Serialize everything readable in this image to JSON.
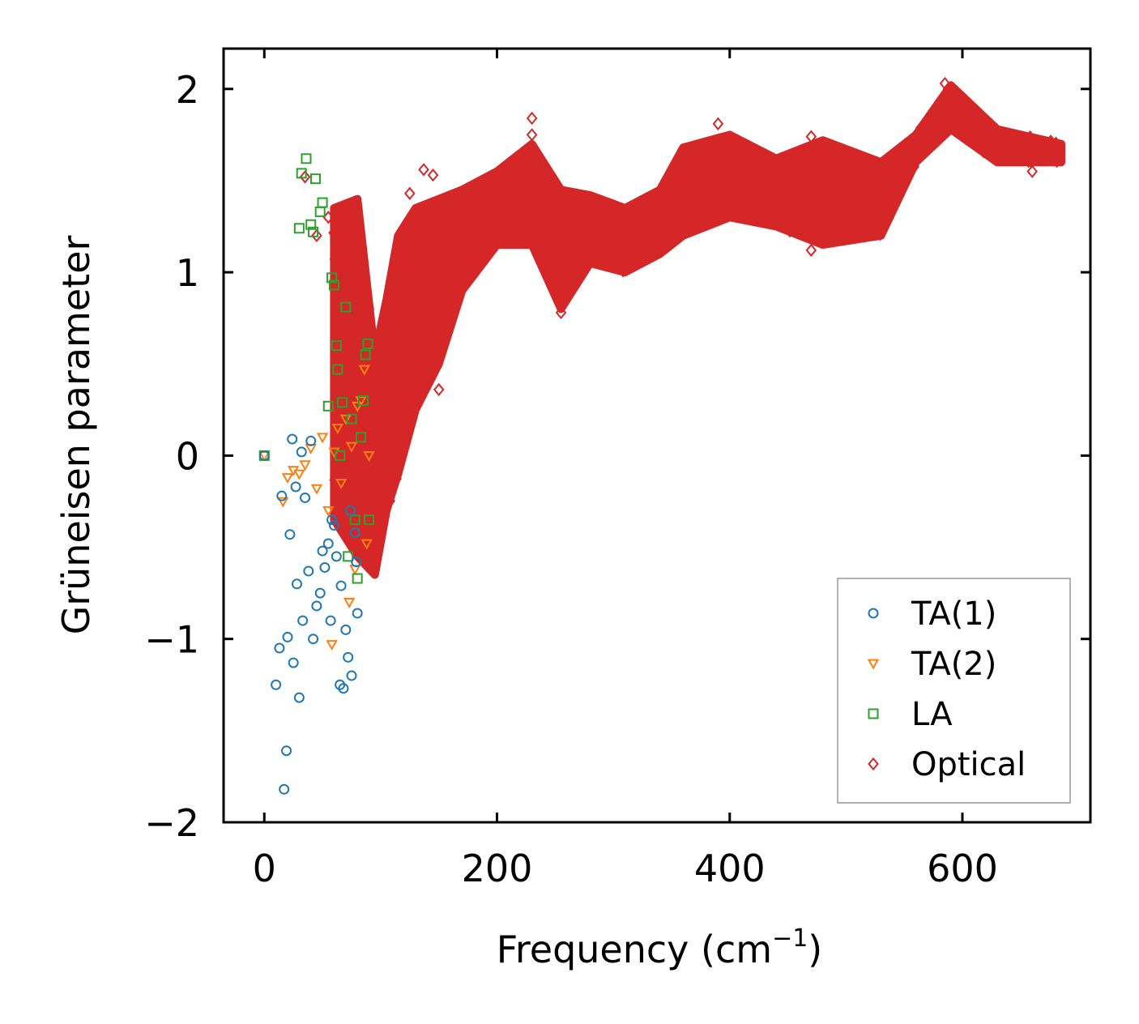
{
  "chart_data": {
    "type": "scatter",
    "title": "",
    "xlabel": "Frequency (cm",
    "xlabel_sup": "−1",
    "xlabel_close": ")",
    "ylabel": "Grüneisen parameter",
    "xlim": [
      -35,
      710
    ],
    "ylim": [
      -2.0,
      2.22
    ],
    "xticks": [
      0,
      200,
      400,
      600
    ],
    "xtick_labels": [
      "0",
      "200",
      "400",
      "600"
    ],
    "yticks": [
      -2,
      -1,
      0,
      1,
      2
    ],
    "ytick_labels": [
      "−2",
      "−1",
      "0",
      "1",
      "2"
    ],
    "legend_position": "lower-right",
    "series": [
      {
        "name": "TA(1)",
        "marker": "circle",
        "color": "#1f77b4",
        "points": [
          [
            0,
            0
          ],
          [
            15,
            -0.22
          ],
          [
            17,
            -1.82
          ],
          [
            19,
            -1.61
          ],
          [
            10,
            -1.25
          ],
          [
            20,
            -0.99
          ],
          [
            22,
            -0.43
          ],
          [
            24,
            0.09
          ],
          [
            27,
            -0.17
          ],
          [
            30,
            -1.32
          ],
          [
            32,
            0.02
          ],
          [
            35,
            -0.23
          ],
          [
            40,
            0.08
          ],
          [
            45,
            -0.82
          ],
          [
            50,
            -0.52
          ],
          [
            55,
            -0.48
          ],
          [
            58,
            -0.35
          ],
          [
            62,
            -0.55
          ],
          [
            65,
            -1.25
          ],
          [
            68,
            -1.27
          ],
          [
            70,
            -0.95
          ],
          [
            72,
            -1.1
          ],
          [
            75,
            -1.2
          ],
          [
            78,
            -0.42
          ],
          [
            80,
            -0.86
          ],
          [
            13,
            -1.05
          ],
          [
            25,
            -1.13
          ],
          [
            28,
            -0.7
          ],
          [
            33,
            -0.9
          ],
          [
            38,
            -0.63
          ],
          [
            42,
            -1.0
          ],
          [
            48,
            -0.75
          ],
          [
            52,
            -0.61
          ],
          [
            57,
            -0.9
          ],
          [
            60,
            -0.38
          ],
          [
            66,
            -0.71
          ],
          [
            74,
            -0.3
          ],
          [
            79,
            -0.58
          ]
        ]
      },
      {
        "name": "TA(2)",
        "marker": "triangle-down",
        "color": "#ff7f0e",
        "points": [
          [
            0,
            0
          ],
          [
            16,
            -0.25
          ],
          [
            20,
            -0.12
          ],
          [
            25,
            -0.08
          ],
          [
            30,
            -0.1
          ],
          [
            35,
            -0.05
          ],
          [
            40,
            0.04
          ],
          [
            45,
            -0.18
          ],
          [
            50,
            0.1
          ],
          [
            55,
            -0.3
          ],
          [
            58,
            -1.03
          ],
          [
            60,
            0.02
          ],
          [
            63,
            0.15
          ],
          [
            66,
            -0.15
          ],
          [
            70,
            0.2
          ],
          [
            73,
            -0.8
          ],
          [
            75,
            0.05
          ],
          [
            78,
            -0.62
          ],
          [
            80,
            0.27
          ],
          [
            83,
            0.3
          ],
          [
            86,
            0.47
          ],
          [
            88,
            -0.48
          ],
          [
            90,
            0.0
          ]
        ]
      },
      {
        "name": "LA",
        "marker": "square",
        "color": "#2ca02c",
        "points": [
          [
            0,
            0
          ],
          [
            30,
            1.24
          ],
          [
            32,
            1.54
          ],
          [
            36,
            1.62
          ],
          [
            40,
            1.26
          ],
          [
            42,
            1.22
          ],
          [
            44,
            1.51
          ],
          [
            48,
            1.33
          ],
          [
            50,
            1.38
          ],
          [
            55,
            0.27
          ],
          [
            58,
            0.97
          ],
          [
            60,
            0.93
          ],
          [
            62,
            0.6
          ],
          [
            63,
            0.47
          ],
          [
            65,
            0.0
          ],
          [
            67,
            0.29
          ],
          [
            70,
            0.81
          ],
          [
            72,
            -0.55
          ],
          [
            75,
            0.2
          ],
          [
            78,
            -0.35
          ],
          [
            80,
            -0.67
          ],
          [
            83,
            0.1
          ],
          [
            85,
            0.3
          ],
          [
            87,
            0.55
          ],
          [
            89,
            0.61
          ],
          [
            90,
            -0.35
          ]
        ]
      },
      {
        "name": "Optical",
        "marker": "diamond",
        "color": "#d62728",
        "band": [
          [
            60,
            -0.35,
            1.35
          ],
          [
            80,
            -0.55,
            1.4
          ],
          [
            95,
            -0.65,
            0.55
          ],
          [
            105,
            -0.3,
            0.85
          ],
          [
            115,
            -0.1,
            1.2
          ],
          [
            130,
            0.25,
            1.35
          ],
          [
            150,
            0.5,
            1.4
          ],
          [
            170,
            0.9,
            1.45
          ],
          [
            200,
            1.15,
            1.55
          ],
          [
            230,
            1.15,
            1.7
          ],
          [
            255,
            0.8,
            1.45
          ],
          [
            280,
            1.05,
            1.42
          ],
          [
            310,
            1.0,
            1.35
          ],
          [
            340,
            1.1,
            1.45
          ],
          [
            360,
            1.2,
            1.68
          ],
          [
            400,
            1.3,
            1.75
          ],
          [
            440,
            1.25,
            1.62
          ],
          [
            480,
            1.15,
            1.72
          ],
          [
            530,
            1.2,
            1.6
          ],
          [
            560,
            1.6,
            1.75
          ],
          [
            590,
            1.78,
            2.02
          ],
          [
            630,
            1.6,
            1.78
          ],
          [
            685,
            1.6,
            1.7
          ]
        ],
        "points": [
          [
            35,
            1.52
          ],
          [
            45,
            1.2
          ],
          [
            55,
            1.3
          ],
          [
            90,
            0.8
          ],
          [
            125,
            1.43
          ],
          [
            137,
            1.56
          ],
          [
            145,
            1.53
          ],
          [
            150,
            0.36
          ],
          [
            230,
            1.84
          ],
          [
            255,
            0.78
          ],
          [
            390,
            1.81
          ],
          [
            470,
            1.74
          ],
          [
            585,
            2.03
          ],
          [
            660,
            1.55
          ],
          [
            470,
            1.12
          ],
          [
            230,
            1.75
          ]
        ]
      }
    ]
  }
}
